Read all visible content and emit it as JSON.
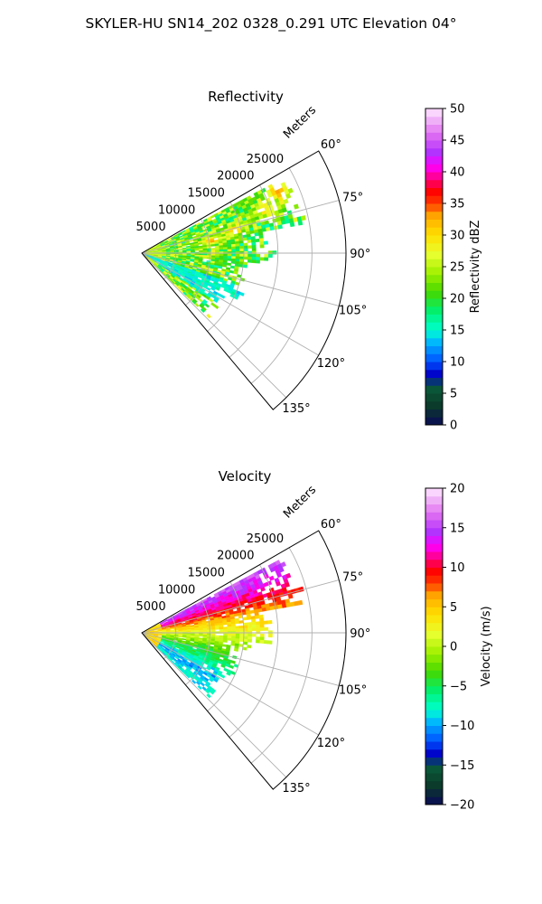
{
  "suptitle": "SKYLER-HU  SN14_202  0328_0.291 UTC Elevation 04°",
  "chart_data": [
    {
      "type": "heatmap",
      "projection": "polar-sector",
      "title": "Reflectivity",
      "radial_label": "Meters",
      "radial_range": [
        0,
        30000
      ],
      "radial_ticks": [
        5000,
        10000,
        15000,
        20000,
        25000
      ],
      "radial_tick_labels": [
        "5000",
        "10000",
        "15000",
        "20000",
        "25000"
      ],
      "angular_range_deg": [
        60,
        140
      ],
      "angular_ticks": [
        60,
        75,
        90,
        105,
        120,
        135
      ],
      "angular_tick_labels": [
        "60°",
        "75°",
        "90°",
        "105°",
        "120°",
        "135°"
      ],
      "grid": true,
      "colorbar": {
        "label": "Reflectivity dBZ",
        "range": [
          0,
          50
        ],
        "ticks": [
          0,
          5,
          10,
          15,
          20,
          25,
          30,
          35,
          40,
          45,
          50
        ],
        "tick_labels": [
          "0",
          "5",
          "10",
          "15",
          "20",
          "25",
          "30",
          "35",
          "40",
          "45",
          "50"
        ],
        "steps": 40,
        "stops": [
          [
            0.0,
            "#0a0a55"
          ],
          [
            0.06,
            "#0b3a2a"
          ],
          [
            0.12,
            "#0a5a3a"
          ],
          [
            0.16,
            "#0000c8"
          ],
          [
            0.2,
            "#0050ff"
          ],
          [
            0.26,
            "#00b4ff"
          ],
          [
            0.3,
            "#00ffd0"
          ],
          [
            0.36,
            "#00f070"
          ],
          [
            0.42,
            "#44d800"
          ],
          [
            0.48,
            "#a0f000"
          ],
          [
            0.54,
            "#e8ff30"
          ],
          [
            0.6,
            "#ffe000"
          ],
          [
            0.66,
            "#ffaa00"
          ],
          [
            0.7,
            "#ff3c00"
          ],
          [
            0.74,
            "#ff0000"
          ],
          [
            0.78,
            "#ff0088"
          ],
          [
            0.82,
            "#ff00ff"
          ],
          [
            0.86,
            "#b030ff"
          ],
          [
            0.92,
            "#e070f0"
          ],
          [
            1.0,
            "#ffe8ff"
          ]
        ]
      },
      "field_summary": {
        "data_sector_deg": [
          62,
          134
        ],
        "data_range_m": [
          0,
          25000
        ],
        "typical_value": 22,
        "value_spread": 6,
        "near_gate_value": 25,
        "hot_spots": [
          {
            "azimuth_deg": 66,
            "range_m": 22000,
            "value": 33
          },
          {
            "azimuth_deg": 70,
            "range_m": 19000,
            "value": 30
          },
          {
            "azimuth_deg": 76,
            "range_m": 14000,
            "value": 31
          },
          {
            "azimuth_deg": 80,
            "range_m": 10500,
            "value": 33
          }
        ],
        "low_value_wedge_deg": [
          108,
          124
        ],
        "low_value": 15
      }
    },
    {
      "type": "heatmap",
      "projection": "polar-sector",
      "title": "Velocity",
      "radial_label": "Meters",
      "radial_range": [
        0,
        30000
      ],
      "radial_ticks": [
        5000,
        10000,
        15000,
        20000,
        25000
      ],
      "radial_tick_labels": [
        "5000",
        "10000",
        "15000",
        "20000",
        "25000"
      ],
      "angular_range_deg": [
        60,
        140
      ],
      "angular_ticks": [
        60,
        75,
        90,
        105,
        120,
        135
      ],
      "angular_tick_labels": [
        "60°",
        "75°",
        "90°",
        "105°",
        "120°",
        "135°"
      ],
      "grid": true,
      "colorbar": {
        "label": "Velocity (m/s)",
        "range": [
          -20,
          20
        ],
        "ticks": [
          -20,
          -15,
          -10,
          -5,
          0,
          5,
          10,
          15,
          20
        ],
        "tick_labels": [
          "−20",
          "−15",
          "−10",
          "−5",
          "0",
          "5",
          "10",
          "15",
          "20"
        ],
        "steps": 40,
        "stops": [
          [
            0.0,
            "#0a0a55"
          ],
          [
            0.06,
            "#0b3a2a"
          ],
          [
            0.12,
            "#0a5a3a"
          ],
          [
            0.16,
            "#0000c8"
          ],
          [
            0.2,
            "#0050ff"
          ],
          [
            0.26,
            "#00b4ff"
          ],
          [
            0.3,
            "#00ffd0"
          ],
          [
            0.36,
            "#00f070"
          ],
          [
            0.42,
            "#44d800"
          ],
          [
            0.48,
            "#a0f000"
          ],
          [
            0.54,
            "#e8ff30"
          ],
          [
            0.6,
            "#ffe000"
          ],
          [
            0.66,
            "#ffaa00"
          ],
          [
            0.7,
            "#ff3c00"
          ],
          [
            0.74,
            "#ff0000"
          ],
          [
            0.78,
            "#ff0088"
          ],
          [
            0.82,
            "#ff00ff"
          ],
          [
            0.86,
            "#b030ff"
          ],
          [
            0.92,
            "#e070f0"
          ],
          [
            1.0,
            "#ffe8ff"
          ]
        ]
      },
      "field_summary": {
        "data_sector_deg": [
          62,
          134
        ],
        "data_range_m": [
          0,
          25000
        ],
        "velocity_by_azimuth": [
          {
            "azimuth_deg": 62,
            "value": 16
          },
          {
            "azimuth_deg": 68,
            "value": 13
          },
          {
            "azimuth_deg": 74,
            "value": 10
          },
          {
            "azimuth_deg": 82,
            "value": 5
          },
          {
            "azimuth_deg": 92,
            "value": 1
          },
          {
            "azimuth_deg": 102,
            "value": -3
          },
          {
            "azimuth_deg": 112,
            "value": -6
          },
          {
            "azimuth_deg": 122,
            "value": -10
          },
          {
            "azimuth_deg": 134,
            "value": -8
          }
        ],
        "near_gate_value": 4,
        "value_spread": 1.5
      }
    }
  ]
}
